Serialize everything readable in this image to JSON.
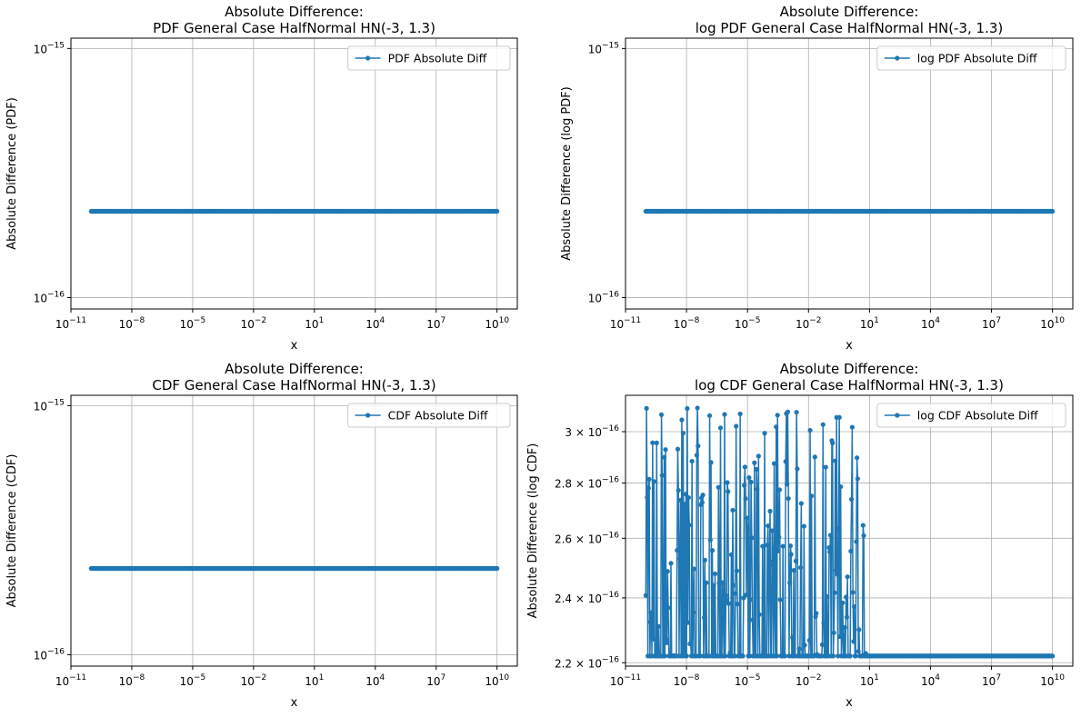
{
  "colors": {
    "series": "#1f77b4",
    "grid": "#b0b0b0",
    "axes": "#000000",
    "legend_border": "#cccccc"
  },
  "chart_data": [
    {
      "type": "line",
      "marker": "o",
      "title_lines": [
        "Absolute Difference:",
        "PDF General Case HalfNormal HN(-3, 1.3)"
      ],
      "xlabel": "x",
      "ylabel": "Absolute Difference (PDF)",
      "xscale": "log",
      "yscale": "log",
      "xlim": [
        1e-11,
        100000000000.0
      ],
      "ylim": [
        9e-17,
        1.1e-15
      ],
      "xticks": [
        1e-11,
        1e-08,
        1e-05,
        0.01,
        10.0,
        10000.0,
        10000000.0,
        10000000000.0
      ],
      "xtick_labels": [
        {
          "base": "10",
          "exp": "−11"
        },
        {
          "base": "10",
          "exp": "−8"
        },
        {
          "base": "10",
          "exp": "−5"
        },
        {
          "base": "10",
          "exp": "−2"
        },
        {
          "base": "10",
          "exp": "1"
        },
        {
          "base": "10",
          "exp": "4"
        },
        {
          "base": "10",
          "exp": "7"
        },
        {
          "base": "10",
          "exp": "10"
        }
      ],
      "yticks": [
        1e-16,
        1e-15
      ],
      "ytick_labels": [
        {
          "base": "10",
          "exp": "−16"
        },
        {
          "base": "10",
          "exp": "−15"
        }
      ],
      "grid": true,
      "legend_position": "upper right",
      "series": [
        {
          "name": "PDF Absolute Diff",
          "x_range": [
            1e-10,
            10000000000.0
          ],
          "points": 600,
          "constant_y": 2.22e-16
        }
      ]
    },
    {
      "type": "line",
      "marker": "o",
      "title_lines": [
        "Absolute Difference:",
        "log PDF General Case HalfNormal HN(-3, 1.3)"
      ],
      "xlabel": "x",
      "ylabel": "Absolute Difference (log PDF)",
      "xscale": "log",
      "yscale": "log",
      "xlim": [
        1e-11,
        100000000000.0
      ],
      "ylim": [
        9e-17,
        1.1e-15
      ],
      "xticks": [
        1e-11,
        1e-08,
        1e-05,
        0.01,
        10.0,
        10000.0,
        10000000.0,
        10000000000.0
      ],
      "xtick_labels": [
        {
          "base": "10",
          "exp": "−11"
        },
        {
          "base": "10",
          "exp": "−8"
        },
        {
          "base": "10",
          "exp": "−5"
        },
        {
          "base": "10",
          "exp": "−2"
        },
        {
          "base": "10",
          "exp": "1"
        },
        {
          "base": "10",
          "exp": "4"
        },
        {
          "base": "10",
          "exp": "7"
        },
        {
          "base": "10",
          "exp": "10"
        }
      ],
      "yticks": [
        1e-16,
        1e-15
      ],
      "ytick_labels": [
        {
          "base": "10",
          "exp": "−16"
        },
        {
          "base": "10",
          "exp": "−15"
        }
      ],
      "grid": true,
      "legend_position": "upper right",
      "series": [
        {
          "name": "log PDF Absolute Diff",
          "x_range": [
            1e-10,
            10000000000.0
          ],
          "points": 600,
          "constant_y": 2.22e-16
        }
      ]
    },
    {
      "type": "line",
      "marker": "o",
      "title_lines": [
        "Absolute Difference:",
        "CDF General Case HalfNormal HN(-3, 1.3)"
      ],
      "xlabel": "x",
      "ylabel": "Absolute Difference (CDF)",
      "xscale": "log",
      "yscale": "log",
      "xlim": [
        1e-11,
        100000000000.0
      ],
      "ylim": [
        9e-17,
        1.1e-15
      ],
      "xticks": [
        1e-11,
        1e-08,
        1e-05,
        0.01,
        10.0,
        10000.0,
        10000000.0,
        10000000000.0
      ],
      "xtick_labels": [
        {
          "base": "10",
          "exp": "−11"
        },
        {
          "base": "10",
          "exp": "−8"
        },
        {
          "base": "10",
          "exp": "−5"
        },
        {
          "base": "10",
          "exp": "−2"
        },
        {
          "base": "10",
          "exp": "1"
        },
        {
          "base": "10",
          "exp": "4"
        },
        {
          "base": "10",
          "exp": "7"
        },
        {
          "base": "10",
          "exp": "10"
        }
      ],
      "yticks": [
        1e-16,
        1e-15
      ],
      "ytick_labels": [
        {
          "base": "10",
          "exp": "−16"
        },
        {
          "base": "10",
          "exp": "−15"
        }
      ],
      "grid": true,
      "legend_position": "upper right",
      "series": [
        {
          "name": "CDF Absolute Diff",
          "x_range": [
            1e-10,
            10000000000.0
          ],
          "points": 600,
          "constant_y": 2.22e-16
        }
      ]
    },
    {
      "type": "line",
      "marker": "o",
      "title_lines": [
        "Absolute Difference:",
        "log CDF General Case HalfNormal HN(-3, 1.3)"
      ],
      "xlabel": "x",
      "ylabel": "Absolute Difference (log CDF)",
      "xscale": "log",
      "yscale": "log",
      "xlim": [
        1e-11,
        100000000000.0
      ],
      "ylim": [
        2.19e-16,
        3.15e-16
      ],
      "xticks": [
        1e-11,
        1e-08,
        1e-05,
        0.01,
        10.0,
        10000.0,
        10000000.0,
        10000000000.0
      ],
      "xtick_labels": [
        {
          "base": "10",
          "exp": "−11"
        },
        {
          "base": "10",
          "exp": "−8"
        },
        {
          "base": "10",
          "exp": "−5"
        },
        {
          "base": "10",
          "exp": "−2"
        },
        {
          "base": "10",
          "exp": "1"
        },
        {
          "base": "10",
          "exp": "4"
        },
        {
          "base": "10",
          "exp": "7"
        },
        {
          "base": "10",
          "exp": "10"
        }
      ],
      "yticks": [
        2.2e-16,
        2.4e-16,
        2.6e-16,
        2.8e-16,
        3e-16
      ],
      "ytick_labels": [
        {
          "base": "2.2 × 10",
          "exp": "−16"
        },
        {
          "base": "2.4 × 10",
          "exp": "−16"
        },
        {
          "base": "2.6 × 10",
          "exp": "−16"
        },
        {
          "base": "2.8 × 10",
          "exp": "−16"
        },
        {
          "base": "3 × 10",
          "exp": "−16"
        }
      ],
      "grid": true,
      "legend_position": "upper right",
      "series": [
        {
          "name": "log CDF Absolute Diff",
          "x_range": [
            1e-10,
            10000000000.0
          ],
          "points": 600,
          "noisy_until_x": 10,
          "noisy_y_range": [
            2.22e-16,
            3.1e-16
          ],
          "constant_y_after": 2.22e-16
        }
      ]
    }
  ]
}
